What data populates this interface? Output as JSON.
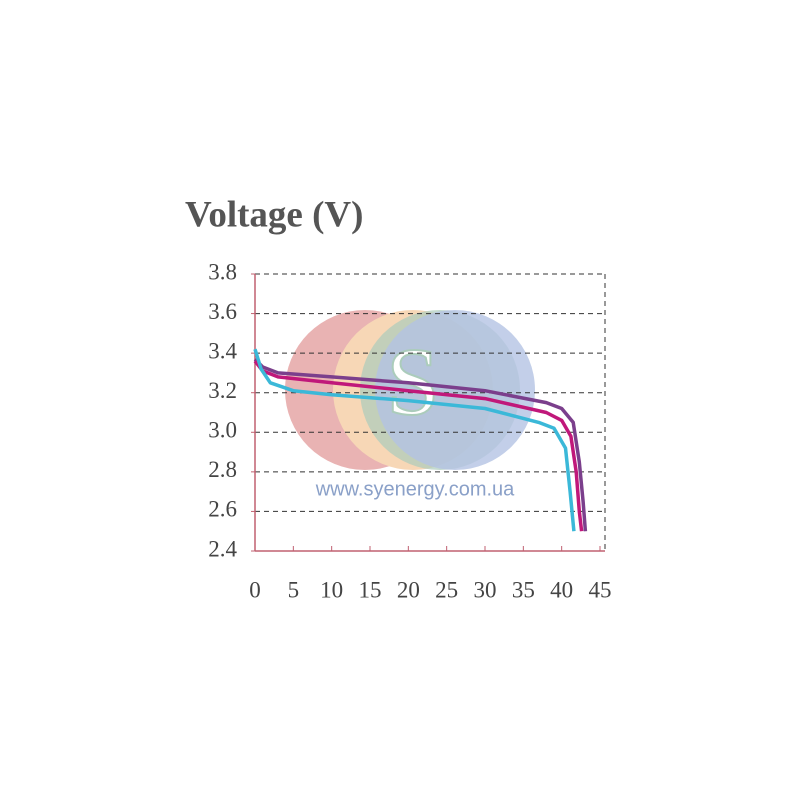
{
  "chart_data": {
    "type": "line",
    "title": "Voltage (V)",
    "watermark": "www.syenergy.com.ua",
    "logo": "S",
    "xlim": [
      0,
      45
    ],
    "xticks": [
      0,
      5,
      10,
      15,
      20,
      25,
      30,
      35,
      40,
      45
    ],
    "ylim": [
      2.4,
      3.8
    ],
    "yticks": [
      2.4,
      2.6,
      2.8,
      {
        "value": 3,
        "label": "3.0"
      },
      3.2,
      3.4,
      3.6,
      3.8
    ],
    "grid": true,
    "series": [
      {
        "color": "#7b3f8c",
        "x": [
          0,
          1,
          3,
          10,
          20,
          30,
          38,
          40,
          41.5,
          42.3,
          42.8,
          43.1
        ],
        "values": [
          3.37,
          3.33,
          3.3,
          3.28,
          3.25,
          3.21,
          3.15,
          3.12,
          3.05,
          2.85,
          2.65,
          2.5
        ]
      },
      {
        "color": "#c0187a",
        "x": [
          0,
          1,
          3,
          10,
          20,
          30,
          38,
          40,
          41.2,
          41.9,
          42.3,
          42.6
        ],
        "values": [
          3.36,
          3.31,
          3.28,
          3.25,
          3.21,
          3.17,
          3.1,
          3.06,
          2.98,
          2.8,
          2.6,
          2.5
        ]
      },
      {
        "color": "#3bb8d8",
        "x": [
          0,
          0.8,
          2,
          5,
          10,
          20,
          30,
          37,
          39,
          40.5,
          41.1,
          41.6
        ],
        "values": [
          3.42,
          3.32,
          3.25,
          3.21,
          3.19,
          3.16,
          3.12,
          3.05,
          3.02,
          2.92,
          2.7,
          2.5
        ]
      }
    ]
  }
}
